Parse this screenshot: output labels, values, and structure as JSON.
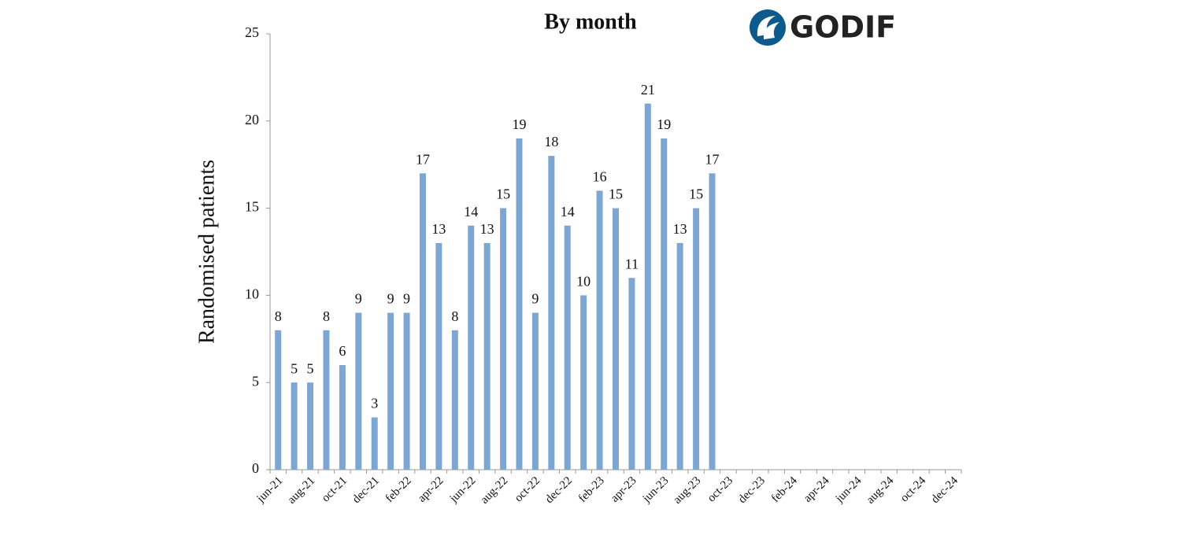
{
  "chart_data": {
    "type": "bar",
    "title": "By month",
    "logo": "GODIF",
    "y_label": "Randomised patients",
    "categories": [
      "jun-21",
      null,
      "aug-21",
      null,
      "oct-21",
      null,
      "dec-21",
      null,
      "feb-22",
      null,
      "apr-22",
      null,
      "jun-22",
      null,
      "aug-22",
      null,
      "oct-22",
      null,
      "dec-22",
      null,
      "feb-23",
      null,
      "apr-23",
      null,
      "jun-23",
      null,
      "aug-23",
      null,
      "oct-23",
      null,
      "dec-23",
      null,
      "feb-24",
      null,
      "apr-24",
      null,
      "jun-24",
      null,
      "aug-24",
      null,
      "oct-24",
      null,
      "dec-24"
    ],
    "values": [
      8,
      5,
      5,
      8,
      6,
      9,
      3,
      9,
      9,
      17,
      13,
      8,
      14,
      13,
      15,
      19,
      9,
      18,
      14,
      10,
      16,
      15,
      11,
      21,
      19,
      13,
      15,
      17,
      null,
      null,
      null,
      null,
      null,
      null,
      null,
      null,
      null,
      null,
      null,
      null,
      null,
      null,
      null
    ],
    "color": "#7ea6d3",
    "ylim": [
      0,
      25
    ],
    "yticks": [
      0,
      5,
      10,
      15,
      20,
      25
    ],
    "grid": false
  }
}
